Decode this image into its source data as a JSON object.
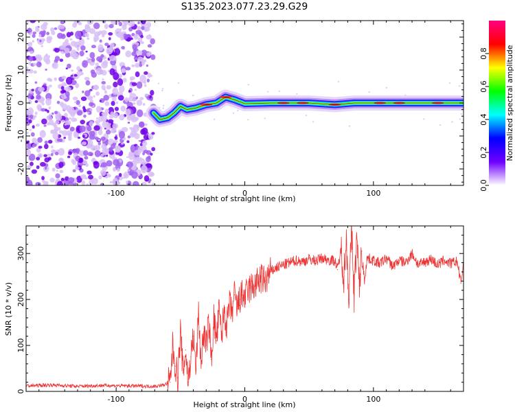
{
  "title": "S135.2023.077.23.29.G29",
  "chart_data": [
    {
      "type": "heatmap",
      "name": "spectrogram",
      "xlabel": "Height of straight line (km)",
      "ylabel": "Frequency (Hz)",
      "xlim": [
        -170,
        170
      ],
      "ylim": [
        -25,
        25
      ],
      "xticks": [
        -100,
        0,
        100
      ],
      "xtick_labels": [
        "-100",
        "0",
        "100"
      ],
      "yticks": [
        -20,
        -10,
        0,
        10,
        20
      ],
      "ytick_labels": [
        "-20",
        "-10",
        "0",
        "10",
        "20"
      ],
      "noise_region_x": [
        -170,
        -71
      ],
      "signal_track": [
        {
          "x": -71,
          "y": -3
        },
        {
          "x": -66,
          "y": -5
        },
        {
          "x": -60,
          "y": -4.5
        },
        {
          "x": -55,
          "y": -3
        },
        {
          "x": -50,
          "y": -1
        },
        {
          "x": -45,
          "y": -2
        },
        {
          "x": -38,
          "y": -1.5
        },
        {
          "x": -30,
          "y": -0.5
        },
        {
          "x": -22,
          "y": 0
        },
        {
          "x": -15,
          "y": 1.8
        },
        {
          "x": -8,
          "y": 1
        },
        {
          "x": 0,
          "y": -0.2
        },
        {
          "x": 20,
          "y": 0
        },
        {
          "x": 50,
          "y": 0
        },
        {
          "x": 70,
          "y": -0.5
        },
        {
          "x": 85,
          "y": 0
        },
        {
          "x": 120,
          "y": 0
        },
        {
          "x": 170,
          "y": 0
        }
      ],
      "colorbar": {
        "label": "Normalized spectral amplitude",
        "range": [
          0,
          1
        ],
        "ticks": [
          0.0,
          0.2,
          0.4,
          0.6,
          0.8
        ],
        "tick_labels": [
          "0.0",
          "0.2",
          "0.4",
          "0.6",
          "0.8"
        ],
        "colors": [
          "#ffffff",
          "#6f00ff",
          "#0000ff",
          "#00ffff",
          "#00ff00",
          "#ffff00",
          "#ff0000",
          "#ff0080"
        ]
      }
    },
    {
      "type": "line",
      "name": "snr",
      "xlabel": "Height of straight line (km)",
      "ylabel": "SNR (10 * v/v)",
      "xlim": [
        -170,
        170
      ],
      "ylim": [
        0,
        360
      ],
      "xticks": [
        -100,
        0,
        100
      ],
      "xtick_labels": [
        "-100",
        "0",
        "100"
      ],
      "yticks": [
        0,
        100,
        200,
        300
      ],
      "ytick_labels": [
        "0",
        "100",
        "200",
        "300"
      ],
      "color": "#ee3333",
      "series": [
        {
          "name": "SNR",
          "x": [
            -170,
            -150,
            -130,
            -110,
            -90,
            -70,
            -63,
            -58,
            -56,
            -54,
            -52,
            -50,
            -48,
            -46,
            -44,
            -42,
            -40,
            -38,
            -36,
            -34,
            -32,
            -30,
            -28,
            -26,
            -24,
            -22,
            -20,
            -18,
            -16,
            -14,
            -12,
            -10,
            -8,
            -6,
            -4,
            -2,
            0,
            4,
            8,
            12,
            16,
            20,
            25,
            30,
            35,
            40,
            45,
            50,
            55,
            60,
            65,
            70,
            72,
            75,
            77,
            79,
            81,
            83,
            85,
            87,
            89,
            91,
            93,
            95,
            100,
            105,
            110,
            115,
            120,
            125,
            130,
            135,
            140,
            145,
            150,
            155,
            160,
            165,
            168,
            170
          ],
          "y": [
            12,
            14,
            11,
            13,
            12,
            11,
            14,
            20,
            100,
            55,
            30,
            130,
            40,
            90,
            20,
            75,
            120,
            45,
            170,
            60,
            130,
            100,
            150,
            70,
            160,
            110,
            175,
            120,
            180,
            140,
            190,
            170,
            210,
            180,
            200,
            210,
            205,
            225,
            230,
            245,
            240,
            260,
            270,
            275,
            280,
            285,
            282,
            288,
            284,
            290,
            286,
            285,
            265,
            310,
            250,
            330,
            200,
            355,
            210,
            335,
            230,
            305,
            240,
            290,
            285,
            278,
            290,
            272,
            285,
            280,
            300,
            275,
            282,
            288,
            275,
            285,
            278,
            283,
            235,
            282
          ]
        }
      ]
    }
  ]
}
